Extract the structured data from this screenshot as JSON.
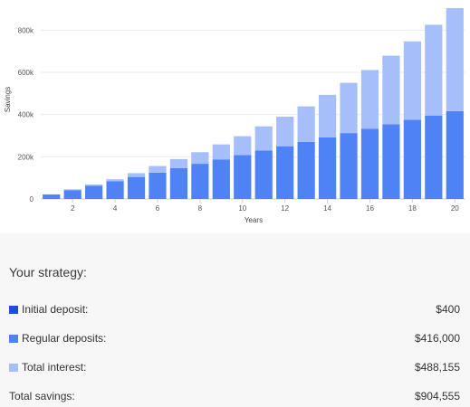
{
  "chart_data": {
    "type": "bar",
    "stacked": true,
    "x": [
      1,
      2,
      3,
      4,
      5,
      6,
      7,
      8,
      9,
      10,
      11,
      12,
      13,
      14,
      15,
      16,
      17,
      18,
      19,
      20
    ],
    "x_ticks": [
      "2",
      "4",
      "6",
      "8",
      "10",
      "12",
      "14",
      "16",
      "18",
      "20"
    ],
    "xlabel": "Years",
    "ylabel": "Savings",
    "ylim": [
      0,
      900000
    ],
    "y_ticks": [
      {
        "value": 0,
        "label": "0"
      },
      {
        "value": 200000,
        "label": "200k"
      },
      {
        "value": 400000,
        "label": "400k"
      },
      {
        "value": 600000,
        "label": "600k"
      },
      {
        "value": 800000,
        "label": "800k"
      }
    ],
    "grid": true,
    "series": [
      {
        "color": "#4f83f5",
        "values": [
          21200,
          42000,
          62800,
          83600,
          104400,
          125200,
          146000,
          166800,
          187600,
          208400,
          229200,
          250000,
          270800,
          291600,
          312400,
          333200,
          354000,
          374800,
          395600,
          416400
        ]
      },
      {
        "color": "#a6bffa",
        "values": [
          800,
          4000,
          6000,
          10000,
          18000,
          31000,
          43000,
          55000,
          71000,
          89000,
          115000,
          140000,
          168000,
          202000,
          238000,
          278000,
          325000,
          372000,
          430000,
          488155
        ]
      }
    ]
  },
  "summary": {
    "title": "Your strategy:",
    "rows": [
      {
        "label": "Initial deposit:",
        "value": "$400",
        "color": "#1f4fd8"
      },
      {
        "label": "Regular deposits:",
        "value": "$416,000",
        "color": "#4f83f5"
      },
      {
        "label": "Total interest:",
        "value": "$488,155",
        "color": "#a6bffa"
      },
      {
        "label": "Total savings:",
        "value": "$904,555"
      }
    ]
  }
}
